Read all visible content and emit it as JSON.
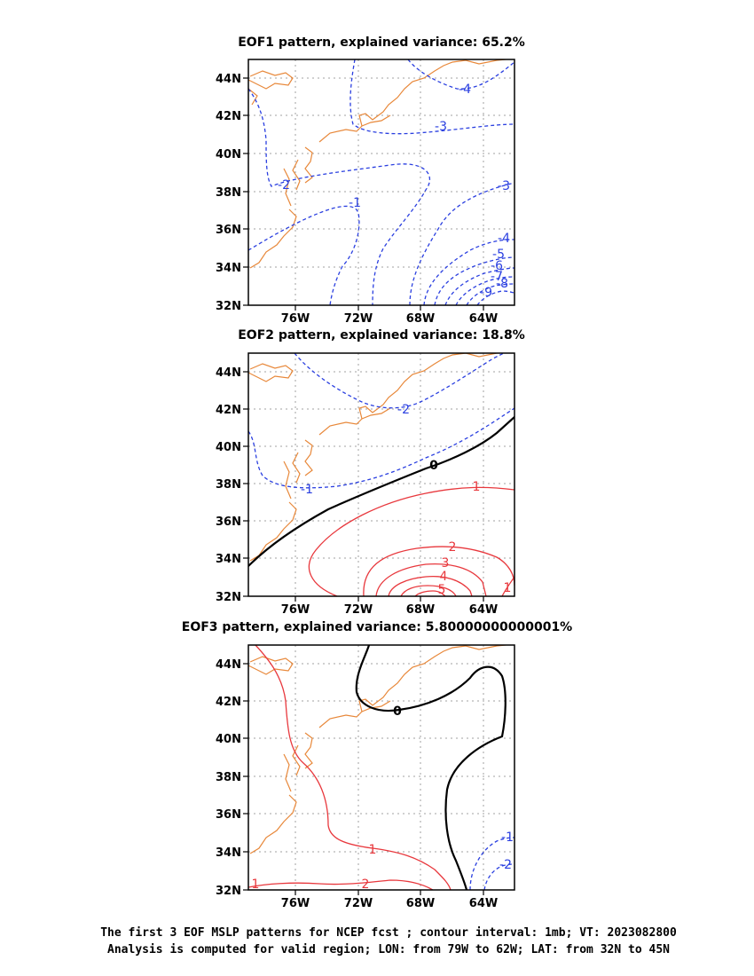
{
  "panels": [
    {
      "title": "EOF1 pattern, explained variance: 65.2%",
      "contour_labels": [
        {
          "text": "-4",
          "color": "blue"
        },
        {
          "text": "-3",
          "color": "blue"
        },
        {
          "text": "-2",
          "color": "blue"
        },
        {
          "text": "-1",
          "color": "blue"
        },
        {
          "text": "-3",
          "color": "blue"
        },
        {
          "text": "-4",
          "color": "blue"
        },
        {
          "text": "-5",
          "color": "blue"
        },
        {
          "text": "-6",
          "color": "blue"
        },
        {
          "text": "-7",
          "color": "blue"
        },
        {
          "text": "-8",
          "color": "blue"
        },
        {
          "text": "-9",
          "color": "blue"
        }
      ]
    },
    {
      "title": "EOF2 pattern, explained variance: 18.8%",
      "contour_labels": [
        {
          "text": "-2",
          "color": "blue"
        },
        {
          "text": "-1",
          "color": "blue"
        },
        {
          "text": "0",
          "color": "black"
        },
        {
          "text": "1",
          "color": "red"
        },
        {
          "text": "2",
          "color": "red"
        },
        {
          "text": "3",
          "color": "red"
        },
        {
          "text": "4",
          "color": "red"
        },
        {
          "text": "5",
          "color": "red"
        },
        {
          "text": "1",
          "color": "red"
        }
      ]
    },
    {
      "title": "EOF3 pattern, explained variance: 5.80000000000001%",
      "contour_labels": [
        {
          "text": "0",
          "color": "black"
        },
        {
          "text": "1",
          "color": "red"
        },
        {
          "text": "1",
          "color": "red"
        },
        {
          "text": "2",
          "color": "red"
        },
        {
          "text": "-1",
          "color": "blue"
        },
        {
          "text": "-2",
          "color": "blue"
        }
      ]
    }
  ],
  "axes": {
    "lon_labels": [
      "76W",
      "72W",
      "68W",
      "64W"
    ],
    "lat_labels": [
      "44N",
      "42N",
      "40N",
      "38N",
      "36N",
      "34N",
      "32N"
    ]
  },
  "colors": {
    "negative": "#2a3fe0",
    "positive": "#e8383d",
    "zero": "#000000",
    "coast": "#e8883a",
    "grid": "#a0a0a0"
  },
  "caption": {
    "line1": "The first 3 EOF MSLP patterns for NCEP fcst ; contour interval: 1mb; VT: 2023082800",
    "line2": "Analysis is computed for valid region; LON: from 79W to 62W; LAT: from 32N to 45N"
  }
}
